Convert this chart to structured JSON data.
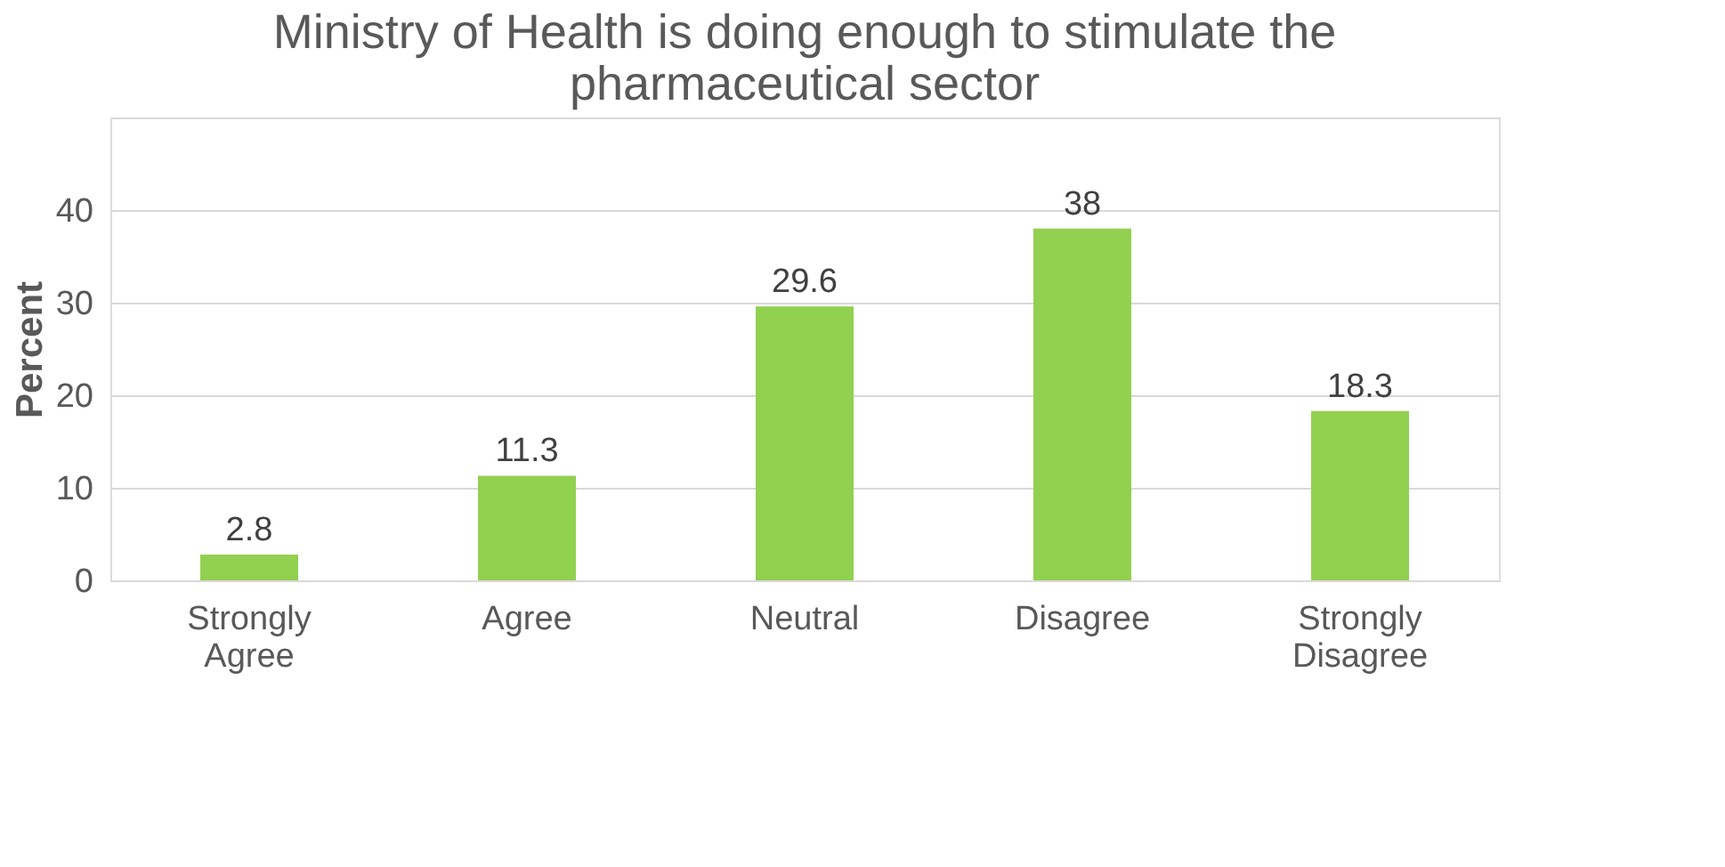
{
  "chart_data": {
    "type": "bar",
    "title": "Ministry of Health is doing enough to stimulate the pharmaceutical sector",
    "ylabel": "Percent",
    "categories": [
      "Strongly Agree",
      "Agree",
      "Neutral",
      "Disagree",
      "Strongly Disagree"
    ],
    "values": [
      2.8,
      11.3,
      29.6,
      38,
      18.3
    ],
    "color": "#92d050",
    "ylim": [
      0,
      50
    ],
    "yticks": [
      0,
      10,
      20,
      30,
      40,
      {
        "value": 50,
        "label": null
      }
    ],
    "grid": "y",
    "data_labels": true
  }
}
